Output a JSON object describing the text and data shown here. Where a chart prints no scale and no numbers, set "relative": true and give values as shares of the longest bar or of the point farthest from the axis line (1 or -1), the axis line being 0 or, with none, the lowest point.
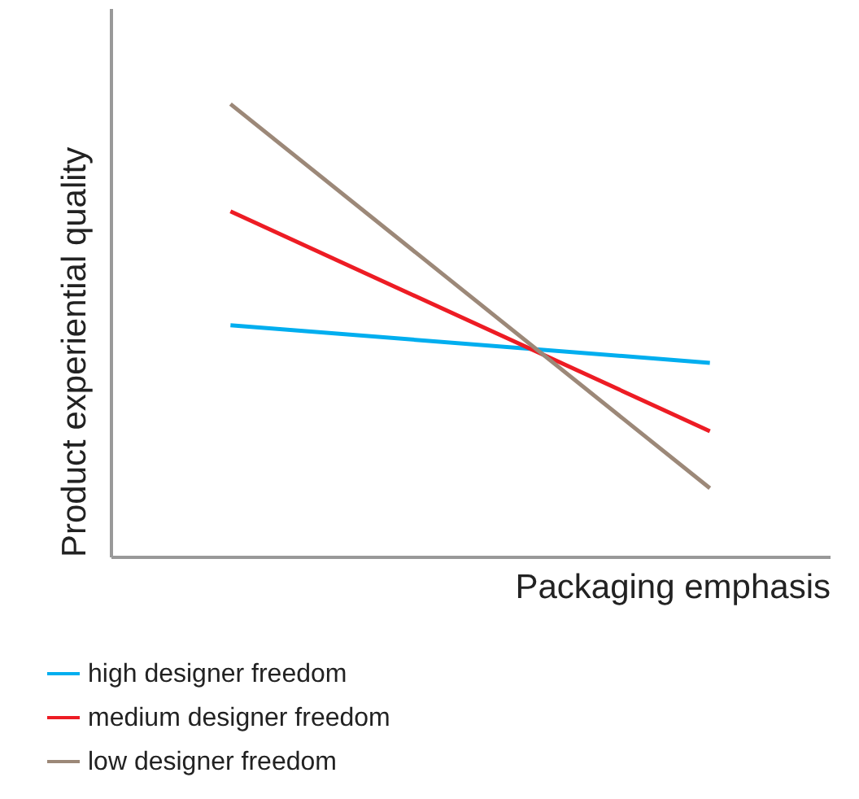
{
  "chart_data": {
    "type": "line",
    "relative": true,
    "xlabel": "Packaging emphasis",
    "ylabel": "Product experiential quality",
    "categories": [
      null,
      null
    ],
    "legend": "bottom left",
    "grid": false,
    "marker": "none",
    "line_style": "solid",
    "series": [
      {
        "name": "high designer freedom",
        "color": "#00aeef",
        "values": [
          0.511,
          0.428
        ]
      },
      {
        "name": "medium designer freedom",
        "color": "#ed1c24",
        "values": [
          0.763,
          0.277
        ]
      },
      {
        "name": "low designer freedom",
        "color": "#9c8878",
        "values": [
          1,
          0.151
        ]
      }
    ]
  }
}
